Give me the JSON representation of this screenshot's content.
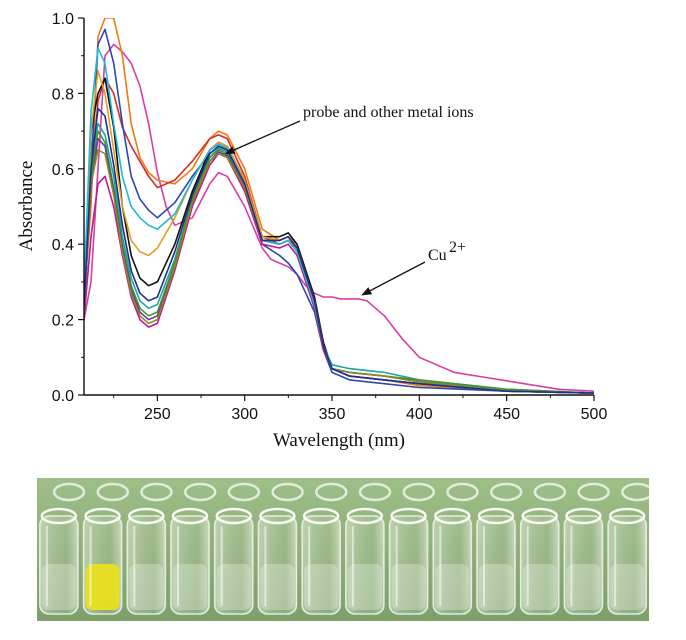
{
  "chart_data": {
    "type": "line",
    "title": "",
    "xlabel": "Wavelength (nm)",
    "ylabel": "Absorbance",
    "xlim": [
      208,
      500
    ],
    "ylim": [
      0,
      1.0
    ],
    "x_ticks": [
      250,
      300,
      350,
      400,
      450,
      500
    ],
    "y_ticks": [
      0.0,
      0.2,
      0.4,
      0.6,
      0.8,
      1.0
    ],
    "x_tick_labels": [
      "250",
      "300",
      "350",
      "400",
      "450",
      "500"
    ],
    "y_tick_labels": [
      "0.0",
      "0.2",
      "0.4",
      "0.6",
      "0.8",
      "1.0"
    ],
    "grid": false,
    "legend": "none",
    "annotations": [
      {
        "text": "probe and other metal ions",
        "target": [
          288,
          0.635
        ]
      },
      {
        "text": "Cu",
        "superscript": "2+",
        "target": [
          365,
          0.255
        ]
      }
    ],
    "series": [
      {
        "name": "Cu2+",
        "color": "#d63fa2",
        "x": [
          208,
          212,
          216,
          220,
          225,
          230,
          235,
          240,
          245,
          250,
          255,
          260,
          270,
          280,
          285,
          290,
          300,
          310,
          315,
          320,
          325,
          330,
          335,
          340,
          345,
          350,
          355,
          360,
          365,
          370,
          380,
          390,
          400,
          420,
          440,
          460,
          480,
          500
        ],
        "y": [
          0.2,
          0.3,
          0.6,
          0.9,
          0.93,
          0.91,
          0.88,
          0.82,
          0.72,
          0.59,
          0.5,
          0.45,
          0.47,
          0.56,
          0.59,
          0.58,
          0.5,
          0.39,
          0.36,
          0.35,
          0.34,
          0.32,
          0.29,
          0.27,
          0.26,
          0.26,
          0.255,
          0.255,
          0.255,
          0.25,
          0.21,
          0.15,
          0.1,
          0.06,
          0.045,
          0.03,
          0.015,
          0.01
        ]
      },
      {
        "name": "orange",
        "color": "#f07a10",
        "x": [
          208,
          212,
          216,
          220,
          225,
          230,
          235,
          240,
          245,
          250,
          260,
          270,
          280,
          285,
          290,
          300,
          310,
          320,
          325,
          330,
          340,
          345,
          350,
          360,
          380,
          400,
          450,
          500
        ],
        "y": [
          0.25,
          0.5,
          0.95,
          1.0,
          1.0,
          0.9,
          0.72,
          0.63,
          0.59,
          0.57,
          0.56,
          0.6,
          0.68,
          0.7,
          0.69,
          0.6,
          0.44,
          0.41,
          0.42,
          0.4,
          0.26,
          0.14,
          0.07,
          0.05,
          0.04,
          0.025,
          0.01,
          0.005
        ]
      },
      {
        "name": "red",
        "color": "#d92b2b",
        "x": [
          208,
          212,
          216,
          220,
          225,
          230,
          235,
          240,
          245,
          250,
          260,
          270,
          280,
          285,
          290,
          300,
          310,
          320,
          325,
          330,
          340,
          345,
          350,
          360,
          380,
          400,
          450,
          500
        ],
        "y": [
          0.3,
          0.55,
          0.78,
          0.84,
          0.8,
          0.71,
          0.66,
          0.62,
          0.58,
          0.55,
          0.57,
          0.62,
          0.68,
          0.69,
          0.68,
          0.58,
          0.42,
          0.4,
          0.41,
          0.39,
          0.25,
          0.14,
          0.07,
          0.05,
          0.04,
          0.03,
          0.01,
          0.005
        ]
      },
      {
        "name": "blue",
        "color": "#2d46b0",
        "x": [
          208,
          212,
          216,
          220,
          225,
          230,
          235,
          240,
          245,
          250,
          260,
          270,
          280,
          285,
          290,
          300,
          310,
          320,
          325,
          330,
          340,
          345,
          350,
          360,
          380,
          400,
          450,
          500
        ],
        "y": [
          0.25,
          0.6,
          0.93,
          0.97,
          0.88,
          0.72,
          0.58,
          0.52,
          0.49,
          0.47,
          0.51,
          0.58,
          0.64,
          0.66,
          0.65,
          0.55,
          0.4,
          0.37,
          0.35,
          0.32,
          0.22,
          0.12,
          0.06,
          0.04,
          0.03,
          0.02,
          0.01,
          0.005
        ]
      },
      {
        "name": "black",
        "color": "#111111",
        "x": [
          208,
          212,
          216,
          220,
          225,
          230,
          235,
          240,
          245,
          250,
          260,
          270,
          280,
          285,
          290,
          300,
          310,
          320,
          325,
          330,
          340,
          345,
          350,
          360,
          380,
          400,
          450,
          500
        ],
        "y": [
          0.22,
          0.7,
          0.8,
          0.84,
          0.71,
          0.5,
          0.37,
          0.31,
          0.29,
          0.3,
          0.4,
          0.54,
          0.65,
          0.67,
          0.66,
          0.57,
          0.42,
          0.42,
          0.43,
          0.4,
          0.26,
          0.14,
          0.07,
          0.05,
          0.04,
          0.03,
          0.01,
          0.005
        ]
      },
      {
        "name": "teal",
        "color": "#1ba6a0",
        "x": [
          208,
          212,
          216,
          220,
          225,
          230,
          235,
          240,
          245,
          250,
          260,
          270,
          280,
          285,
          290,
          300,
          310,
          320,
          325,
          330,
          340,
          345,
          350,
          360,
          380,
          400,
          450,
          500
        ],
        "y": [
          0.24,
          0.62,
          0.72,
          0.69,
          0.58,
          0.42,
          0.31,
          0.25,
          0.23,
          0.24,
          0.36,
          0.52,
          0.63,
          0.655,
          0.645,
          0.56,
          0.41,
          0.41,
          0.42,
          0.39,
          0.25,
          0.13,
          0.08,
          0.07,
          0.06,
          0.04,
          0.015,
          0.005
        ]
      },
      {
        "name": "green",
        "color": "#3a9a2e",
        "x": [
          208,
          212,
          216,
          220,
          225,
          230,
          235,
          240,
          245,
          250,
          260,
          270,
          280,
          285,
          290,
          300,
          310,
          320,
          325,
          330,
          340,
          345,
          350,
          360,
          380,
          400,
          450,
          500
        ],
        "y": [
          0.23,
          0.58,
          0.7,
          0.67,
          0.55,
          0.4,
          0.29,
          0.23,
          0.21,
          0.22,
          0.35,
          0.52,
          0.63,
          0.65,
          0.64,
          0.55,
          0.41,
          0.4,
          0.41,
          0.38,
          0.24,
          0.13,
          0.07,
          0.06,
          0.05,
          0.04,
          0.015,
          0.005
        ]
      },
      {
        "name": "purple",
        "color": "#6a3d9a",
        "x": [
          208,
          212,
          216,
          220,
          225,
          230,
          235,
          240,
          245,
          250,
          260,
          270,
          280,
          285,
          290,
          300,
          310,
          320,
          325,
          330,
          340,
          345,
          350,
          360,
          380,
          400,
          450,
          500
        ],
        "y": [
          0.22,
          0.55,
          0.68,
          0.66,
          0.54,
          0.39,
          0.28,
          0.22,
          0.2,
          0.21,
          0.34,
          0.51,
          0.62,
          0.645,
          0.635,
          0.55,
          0.41,
          0.4,
          0.41,
          0.38,
          0.24,
          0.13,
          0.07,
          0.06,
          0.05,
          0.035,
          0.012,
          0.005
        ]
      },
      {
        "name": "magenta",
        "color": "#c2188f",
        "x": [
          208,
          212,
          216,
          220,
          225,
          230,
          235,
          240,
          245,
          250,
          260,
          270,
          280,
          285,
          290,
          300,
          310,
          320,
          325,
          330,
          340,
          345,
          350,
          360,
          380,
          400,
          450,
          500
        ],
        "y": [
          0.2,
          0.42,
          0.56,
          0.58,
          0.5,
          0.37,
          0.26,
          0.2,
          0.18,
          0.19,
          0.33,
          0.5,
          0.61,
          0.64,
          0.63,
          0.54,
          0.4,
          0.39,
          0.4,
          0.37,
          0.23,
          0.12,
          0.07,
          0.05,
          0.04,
          0.03,
          0.01,
          0.005
        ]
      },
      {
        "name": "olive",
        "color": "#8a8a1e",
        "x": [
          208,
          212,
          216,
          220,
          225,
          230,
          235,
          240,
          245,
          250,
          260,
          270,
          280,
          285,
          290,
          300,
          310,
          320,
          325,
          330,
          340,
          345,
          350,
          360,
          380,
          400,
          450,
          500
        ],
        "y": [
          0.22,
          0.56,
          0.65,
          0.64,
          0.53,
          0.38,
          0.27,
          0.21,
          0.19,
          0.2,
          0.34,
          0.51,
          0.62,
          0.64,
          0.63,
          0.55,
          0.41,
          0.4,
          0.41,
          0.38,
          0.24,
          0.13,
          0.07,
          0.06,
          0.05,
          0.035,
          0.012,
          0.005
        ]
      },
      {
        "name": "gold",
        "color": "#e0a020",
        "x": [
          208,
          212,
          216,
          220,
          225,
          230,
          235,
          240,
          245,
          250,
          260,
          270,
          280,
          285,
          290,
          300,
          310,
          320,
          325,
          330,
          340,
          345,
          350,
          360,
          380,
          400,
          450,
          500
        ],
        "y": [
          0.25,
          0.7,
          0.86,
          0.8,
          0.65,
          0.5,
          0.41,
          0.38,
          0.37,
          0.39,
          0.47,
          0.57,
          0.65,
          0.67,
          0.66,
          0.57,
          0.42,
          0.41,
          0.42,
          0.39,
          0.25,
          0.13,
          0.07,
          0.05,
          0.04,
          0.03,
          0.01,
          0.005
        ]
      },
      {
        "name": "cyan",
        "color": "#22b8d8",
        "x": [
          208,
          212,
          216,
          220,
          225,
          230,
          235,
          240,
          245,
          250,
          260,
          270,
          280,
          285,
          290,
          300,
          310,
          320,
          325,
          330,
          340,
          345,
          350,
          360,
          380,
          400,
          450,
          500
        ],
        "y": [
          0.28,
          0.75,
          0.92,
          0.88,
          0.72,
          0.58,
          0.5,
          0.47,
          0.45,
          0.44,
          0.48,
          0.57,
          0.65,
          0.665,
          0.655,
          0.56,
          0.41,
          0.4,
          0.41,
          0.38,
          0.24,
          0.13,
          0.07,
          0.05,
          0.04,
          0.03,
          0.01,
          0.005
        ]
      },
      {
        "name": "navy",
        "color": "#1f2f8a",
        "x": [
          208,
          212,
          216,
          220,
          225,
          230,
          235,
          240,
          245,
          250,
          260,
          270,
          280,
          285,
          290,
          300,
          310,
          320,
          325,
          330,
          340,
          345,
          350,
          360,
          380,
          400,
          450,
          500
        ],
        "y": [
          0.23,
          0.6,
          0.76,
          0.74,
          0.61,
          0.45,
          0.33,
          0.27,
          0.25,
          0.26,
          0.38,
          0.53,
          0.64,
          0.66,
          0.65,
          0.56,
          0.41,
          0.41,
          0.42,
          0.39,
          0.25,
          0.13,
          0.07,
          0.05,
          0.04,
          0.03,
          0.01,
          0.005
        ]
      }
    ]
  },
  "photo": {
    "caption": "",
    "background_color": "#8cae78",
    "vial_count": 14,
    "highlight_vial": 2,
    "highlight_color": "#e8e020"
  }
}
